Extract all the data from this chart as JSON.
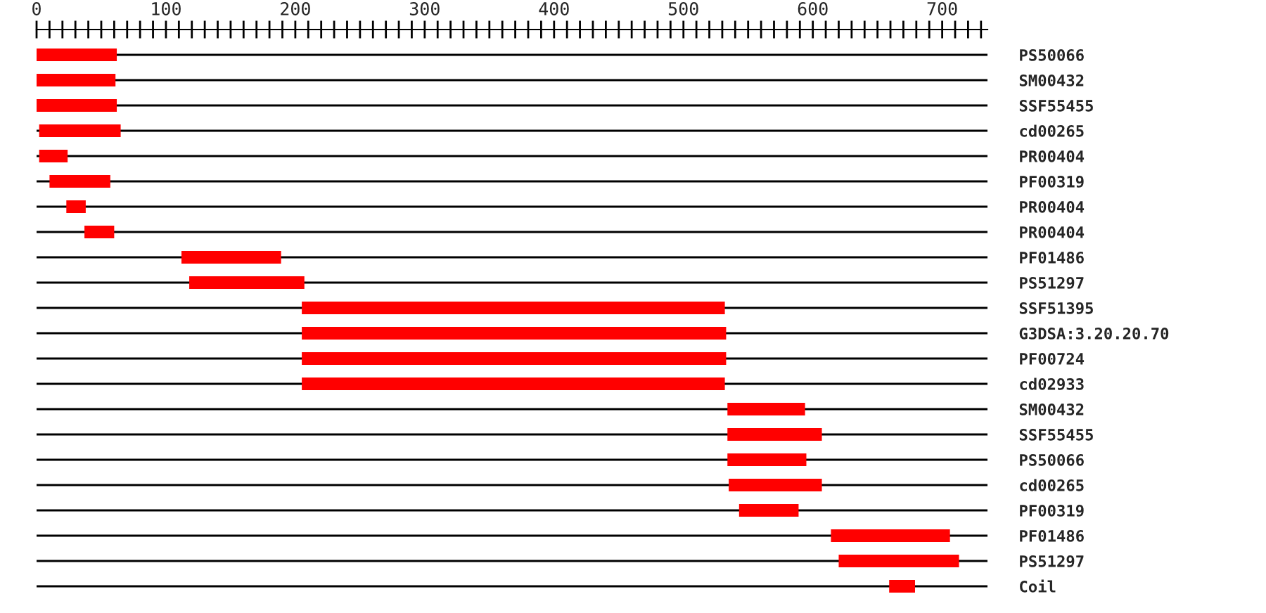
{
  "chart_data": {
    "type": "bar",
    "orientation": "horizontal",
    "color": "#ff0000",
    "grid": "y",
    "categories": [
      "PS50066",
      "SM00432",
      "SSF55455",
      "cd00265",
      "PR00404",
      "PF00319",
      "PR00404",
      "PR00404",
      "PF01486",
      "PS51297",
      "SSF51395",
      "G3DSA:3.20.20.70",
      "PF00724",
      "cd02933",
      "SM00432",
      "SSF55455",
      "PS50066",
      "cd00265",
      "PF00319",
      "PF01486",
      "PS51297",
      "Coil"
    ],
    "base": [
      0,
      0,
      0,
      2,
      2,
      10,
      23,
      37,
      112,
      118,
      205,
      205,
      205,
      205,
      534,
      534,
      534,
      535,
      543,
      614,
      620,
      659
    ],
    "values": [
      62,
      61,
      62,
      63,
      22,
      47,
      15,
      23,
      77,
      89,
      327,
      328,
      328,
      327,
      60,
      73,
      61,
      72,
      46,
      92,
      93,
      20
    ],
    "xlim": [
      0,
      735
    ],
    "xticks": [
      0,
      {
        "value": 10,
        "label": null
      },
      {
        "value": 20,
        "label": null
      },
      {
        "value": 30,
        "label": null
      },
      {
        "value": 40,
        "label": null
      },
      {
        "value": 50,
        "label": null
      },
      {
        "value": 60,
        "label": null
      },
      {
        "value": 70,
        "label": null
      },
      {
        "value": 80,
        "label": null
      },
      {
        "value": 90,
        "label": null
      },
      100,
      {
        "value": 110,
        "label": null
      },
      {
        "value": 120,
        "label": null
      },
      {
        "value": 130,
        "label": null
      },
      {
        "value": 140,
        "label": null
      },
      {
        "value": 150,
        "label": null
      },
      {
        "value": 160,
        "label": null
      },
      {
        "value": 170,
        "label": null
      },
      {
        "value": 180,
        "label": null
      },
      {
        "value": 190,
        "label": null
      },
      200,
      {
        "value": 210,
        "label": null
      },
      {
        "value": 220,
        "label": null
      },
      {
        "value": 230,
        "label": null
      },
      {
        "value": 240,
        "label": null
      },
      {
        "value": 250,
        "label": null
      },
      {
        "value": 260,
        "label": null
      },
      {
        "value": 270,
        "label": null
      },
      {
        "value": 280,
        "label": null
      },
      {
        "value": 290,
        "label": null
      },
      300,
      {
        "value": 310,
        "label": null
      },
      {
        "value": 320,
        "label": null
      },
      {
        "value": 330,
        "label": null
      },
      {
        "value": 340,
        "label": null
      },
      {
        "value": 350,
        "label": null
      },
      {
        "value": 360,
        "label": null
      },
      {
        "value": 370,
        "label": null
      },
      {
        "value": 380,
        "label": null
      },
      {
        "value": 390,
        "label": null
      },
      400,
      {
        "value": 410,
        "label": null
      },
      {
        "value": 420,
        "label": null
      },
      {
        "value": 430,
        "label": null
      },
      {
        "value": 440,
        "label": null
      },
      {
        "value": 450,
        "label": null
      },
      {
        "value": 460,
        "label": null
      },
      {
        "value": 470,
        "label": null
      },
      {
        "value": 480,
        "label": null
      },
      {
        "value": 490,
        "label": null
      },
      500,
      {
        "value": 510,
        "label": null
      },
      {
        "value": 520,
        "label": null
      },
      {
        "value": 530,
        "label": null
      },
      {
        "value": 540,
        "label": null
      },
      {
        "value": 550,
        "label": null
      },
      {
        "value": 560,
        "label": null
      },
      {
        "value": 570,
        "label": null
      },
      {
        "value": 580,
        "label": null
      },
      {
        "value": 590,
        "label": null
      },
      600,
      {
        "value": 610,
        "label": null
      },
      {
        "value": 620,
        "label": null
      },
      {
        "value": 630,
        "label": null
      },
      {
        "value": 640,
        "label": null
      },
      {
        "value": 650,
        "label": null
      },
      {
        "value": 660,
        "label": null
      },
      {
        "value": 670,
        "label": null
      },
      {
        "value": 680,
        "label": null
      },
      {
        "value": 690,
        "label": null
      },
      700,
      {
        "value": 710,
        "label": null
      },
      {
        "value": 720,
        "label": null
      },
      {
        "value": 730,
        "label": null
      }
    ]
  }
}
